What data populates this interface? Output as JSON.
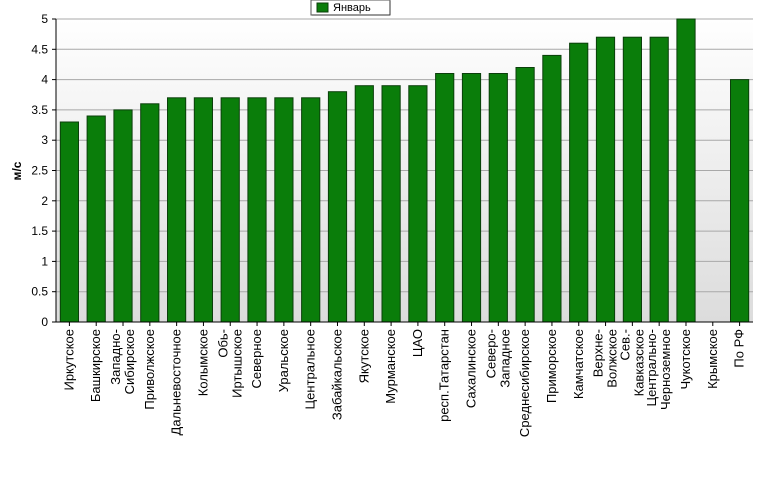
{
  "colors": {
    "bar_fill": "#0a7d0a",
    "bar_stroke": "#0b3f0b",
    "plot_bg_top": "#ffffff",
    "plot_bg_bottom": "#dcdcdc",
    "grid": "#a8a8a8"
  },
  "chart_data": {
    "type": "bar",
    "title": "",
    "xlabel": "",
    "ylabel": "м/с",
    "ylim": [
      0,
      5
    ],
    "yticks": [
      "0",
      "0.5",
      "1",
      "1.5",
      "2",
      "2.5",
      "3",
      "3.5",
      "4",
      "4.5",
      "5"
    ],
    "grid": true,
    "legend_position": "top-center",
    "categories": [
      [
        "Иркутское"
      ],
      [
        "Башкирское"
      ],
      [
        "Западно-",
        "Сибирское"
      ],
      [
        "Приволжское"
      ],
      [
        "Дальневосточное"
      ],
      [
        "Колымское"
      ],
      [
        "Обь-",
        "Иртышское"
      ],
      [
        "Северное"
      ],
      [
        "Уральское"
      ],
      [
        "Центральное"
      ],
      [
        "Забайкальское"
      ],
      [
        "Якутское"
      ],
      [
        "Мурманское"
      ],
      [
        "ЦАО"
      ],
      [
        "респ.Татарстан"
      ],
      [
        "Сахалинское"
      ],
      [
        "Северо-",
        "Западное"
      ],
      [
        "Среднесибирское"
      ],
      [
        "Приморское"
      ],
      [
        "Камчатское"
      ],
      [
        "Верхне-",
        "Волжское"
      ],
      [
        "Сев.-",
        "Кавказское"
      ],
      [
        "Центрально-",
        "Черноземное"
      ],
      [
        "Чукотское"
      ],
      [
        "Крымское"
      ],
      [
        "По РФ"
      ]
    ],
    "series": [
      {
        "name": "Январь",
        "values": [
          3.3,
          3.4,
          3.5,
          3.6,
          3.7,
          3.7,
          3.7,
          3.7,
          3.7,
          3.7,
          3.8,
          3.9,
          3.9,
          3.9,
          4.1,
          4.1,
          4.1,
          4.2,
          4.4,
          4.6,
          4.7,
          4.7,
          4.7,
          5.0,
          null,
          4.0
        ]
      }
    ]
  }
}
